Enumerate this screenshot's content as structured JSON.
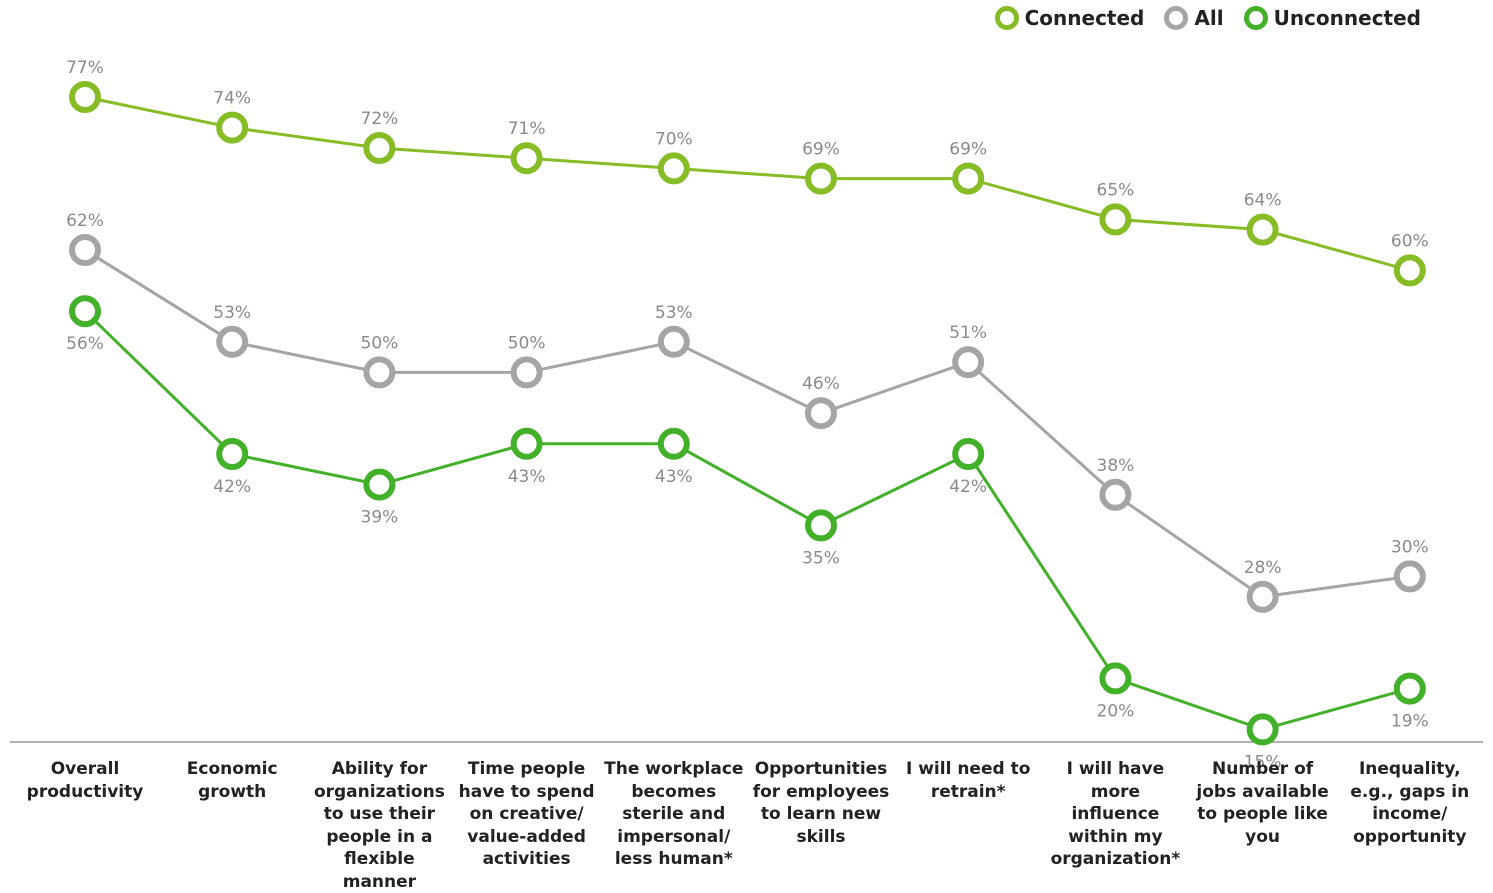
{
  "legend": {
    "connected": "Connected",
    "all": "All",
    "unconnected": "Unconnected"
  },
  "chart_data": {
    "type": "line",
    "categories": [
      "Overall productivity",
      "Economic growth",
      "Ability for organizations to use their people in a flexible manner",
      "Time people have to spend on creative/ value-added activities",
      "The workplace becomes sterile and impersonal/ less human*",
      "Opportunities for employees to learn new skills",
      "I will need to retrain*",
      "I will have more influence within my organization*",
      "Number of jobs available to people like you",
      "Inequality, e.g., gaps in income/ opportunity"
    ],
    "series": [
      {
        "name": "Connected",
        "color": "#86bc25",
        "values": [
          77,
          74,
          72,
          71,
          70,
          69,
          69,
          65,
          64,
          60
        ]
      },
      {
        "name": "All",
        "color": "#a5a5a5",
        "values": [
          62,
          53,
          50,
          50,
          53,
          46,
          51,
          38,
          28,
          30
        ]
      },
      {
        "name": "Unconnected",
        "color": "#43b02a",
        "values": [
          56,
          42,
          39,
          43,
          43,
          35,
          42,
          20,
          15,
          19
        ]
      }
    ],
    "value_suffix": "%",
    "ylim": [
      10,
      80
    ],
    "grid": false,
    "legend_position": "top-right"
  }
}
